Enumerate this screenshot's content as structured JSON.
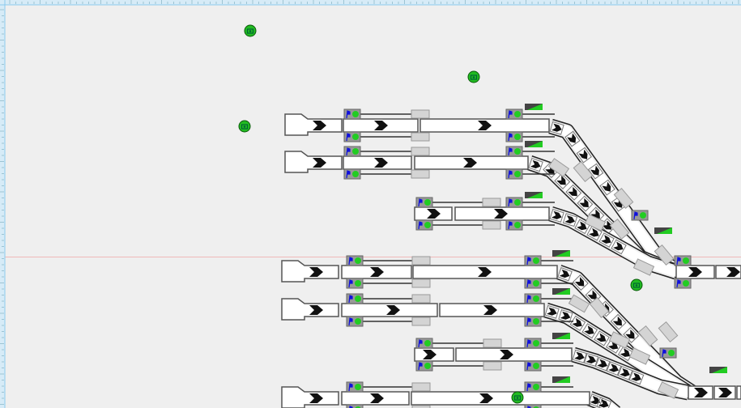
{
  "colors": {
    "background": "#efefef",
    "ruler": "#d6ebf7",
    "ruler_edge": "#8ccbee",
    "guide_line": "#f0b8b8",
    "track_fill": "#ffffff",
    "track_edge": "#555555",
    "chevron": "#111111",
    "signal_box": "#999999",
    "signal_aspect": "#22cc22",
    "signal_arm": "#1010dd",
    "indicator_dark": "#444444",
    "indicator_green": "#22cc22",
    "block_box": "#d4d4d4",
    "camera": "#22bb22"
  },
  "icons": {
    "camera": "camera-icon",
    "signal": "signal-icon",
    "indicator": "point-indicator-icon",
    "chevron": "direction-chevron-icon"
  }
}
